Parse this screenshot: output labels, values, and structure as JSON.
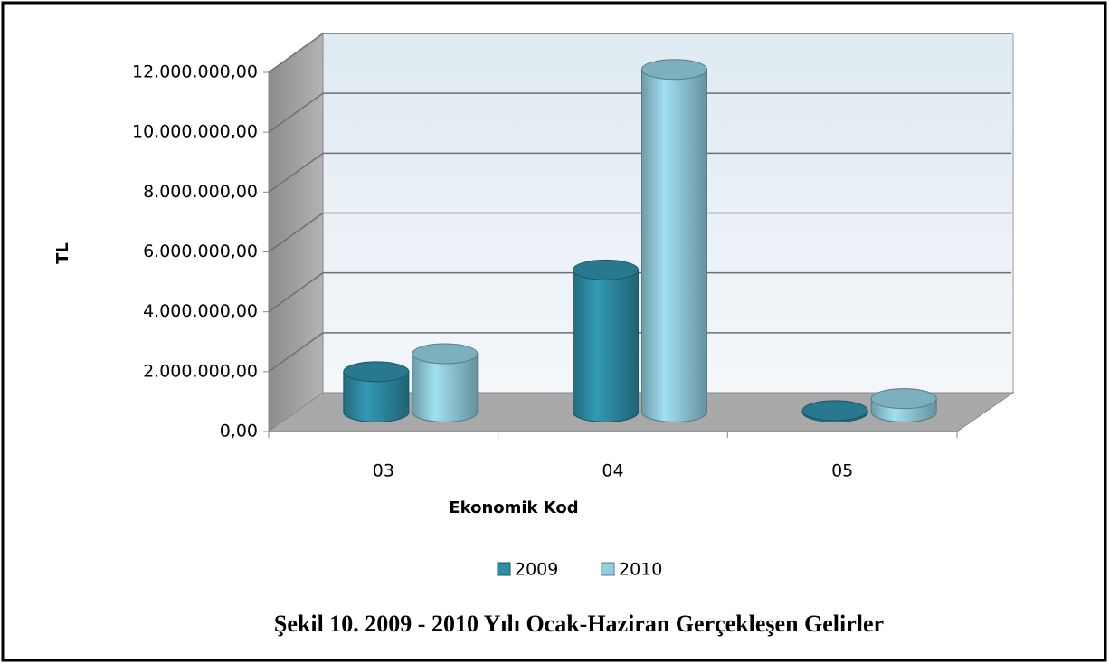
{
  "chart_data": {
    "type": "bar3d",
    "caption": "Şekil 10. 2009 - 2010 Yılı Ocak-Haziran Gerçekleşen Gelirler",
    "x_label": "Ekonomik Kod",
    "y_label": "TL",
    "categories": [
      "03",
      "04",
      "05"
    ],
    "series": [
      {
        "name": "2009",
        "color": "#2f8ea8",
        "values": [
          1350000,
          4750000,
          50000
        ]
      },
      {
        "name": "2010",
        "color": "#93cfe0",
        "values": [
          1950000,
          11450000,
          450000
        ]
      }
    ],
    "ylim": [
      0,
      12000000
    ],
    "yticks": [
      {
        "value": 0,
        "label": "0,00"
      },
      {
        "value": 2000000,
        "label": "2.000.000,00"
      },
      {
        "value": 4000000,
        "label": "4.000.000,00"
      },
      {
        "value": 6000000,
        "label": "6.000.000,00"
      },
      {
        "value": 8000000,
        "label": "8.000.000,00"
      },
      {
        "value": 10000000,
        "label": "10.000.000,00"
      },
      {
        "value": 12000000,
        "label": "12.000.000,00"
      }
    ],
    "grid": true,
    "legend": "bottom"
  }
}
